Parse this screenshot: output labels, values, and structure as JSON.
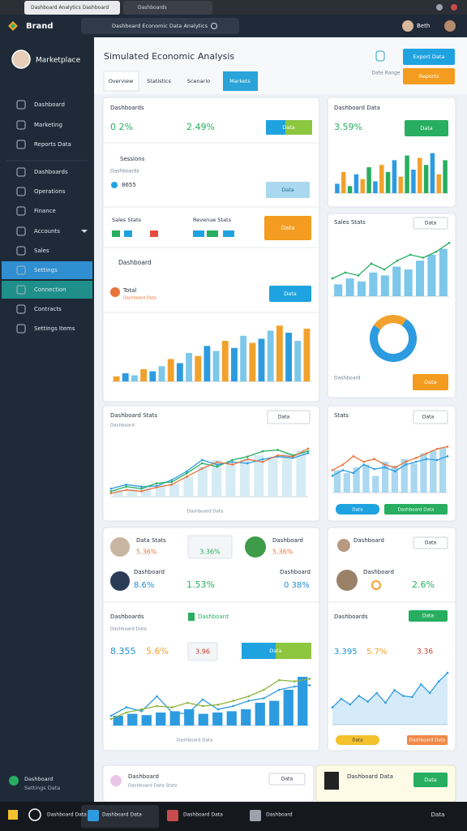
{
  "browser": {
    "tabs": [
      "Dashboard Analytics Dashboard",
      "Dashboards"
    ]
  },
  "header": {
    "brand": "Brand",
    "search": "Dashboard Economic Data Analytics",
    "user": "Beth"
  },
  "sidebar": {
    "profile": "Marketplace",
    "items": [
      "Dashboard",
      "Marketing",
      "Reports Data",
      "Dashboards",
      "Operations",
      "Finance",
      "Accounts",
      "Sales",
      "Settings",
      "Connection",
      "Contracts",
      "Settings Items"
    ],
    "footer": [
      "Dashboard",
      "Settings Data"
    ]
  },
  "page": {
    "title": "Simulated Economic Analysis",
    "tabs": [
      "Overview",
      "Statistics",
      "Scenario",
      "Markets"
    ],
    "actions": [
      "Export Data",
      "Reports"
    ],
    "range": "Date Range"
  },
  "overview": {
    "title": "Dashboards",
    "change": "0 2%",
    "growth": "2.49%",
    "button": "Data"
  },
  "sessions": {
    "title": "Sessions",
    "subtitle": "Dashboards",
    "value": "8655",
    "button": "Data"
  },
  "stats": {
    "left": "Sales Stats",
    "right": "Revenue Stats",
    "button": "Data"
  },
  "dashboard": {
    "title": "Dashboard",
    "value": "Total",
    "subtitle": "Dashboard Data",
    "button": "Data"
  },
  "top_right": {
    "title": "Dashboard Data",
    "value": "3.59%",
    "button": "Data"
  },
  "sales": {
    "title": "Sales Stats",
    "button": "Data",
    "footer": "Dashboard",
    "footer_button": "Data"
  },
  "trend": {
    "title": "Dashboard Stats",
    "subtitle": "Dashboard",
    "button": "Data",
    "legend": "Dashboard Data"
  },
  "trend_right": {
    "title": "Stats",
    "button": "Data",
    "footer": [
      "Data",
      "Dashboard Data"
    ]
  },
  "people": [
    {
      "name": "Data Stats",
      "value": "5.36%",
      "box": "3.36%"
    },
    {
      "name": "Dashboard",
      "value": "5.36%"
    },
    {
      "name": "Dashboard",
      "value": "8.6%",
      "extra": "1.53%"
    },
    {
      "name": "Dashboard",
      "value": "0 38%"
    }
  ],
  "summary": {
    "title": "Dashboards",
    "tag": "Dashboard",
    "subtitle": "Dashboard Data",
    "value": "8.355",
    "change": "5.6%",
    "box": "3.96",
    "button": "Data",
    "legend": "Dashboard Data"
  },
  "people_right": [
    {
      "name": "Dashboard",
      "button": "Data"
    },
    {
      "name": "Dashboard",
      "value": "2.6%"
    }
  ],
  "summary_right": {
    "title": "Dashboards",
    "button": "Data",
    "value": "3.395",
    "change": "5.7%",
    "extra": "3.36",
    "footer": [
      "Data",
      "Dashboard Data"
    ]
  },
  "bottom": {
    "title": "Dashboard",
    "subtitle": "Dashboard Data Stats",
    "button": "Data",
    "right_title": "Dashboard Data",
    "right_button": "Data"
  },
  "taskbar": {
    "items": [
      "Dashboard Data",
      "Dashboard Data",
      "Dashboard Data",
      "Dashboard"
    ],
    "time": "Data"
  },
  "charts": {
    "top_bars": {
      "type": "bar",
      "values": [
        20,
        45,
        15,
        40,
        30,
        55,
        25,
        60,
        45,
        70,
        35,
        80,
        50,
        75,
        60,
        85,
        40,
        70
      ],
      "colors": [
        "#2d9be0",
        "#f2a12c",
        "#27ae60"
      ],
      "ylim": [
        0,
        100
      ]
    },
    "overview_bars": {
      "type": "bar",
      "values": [
        5,
        8,
        6,
        12,
        10,
        15,
        22,
        18,
        28,
        25,
        35,
        30,
        40,
        33,
        45,
        38,
        42,
        50,
        55,
        48,
        40,
        52
      ],
      "colors": [
        "#f2a12c",
        "#2d9be0",
        "#7cc7ea"
      ],
      "ylim": [
        0,
        60
      ]
    },
    "sales_combo": {
      "type": "combo",
      "bars": [
        20,
        30,
        25,
        40,
        35,
        50,
        45,
        60,
        70,
        80
      ],
      "series": [
        {
          "color": "#27ae60",
          "values": [
            30,
            40,
            35,
            55,
            45,
            60,
            70,
            65,
            75,
            90
          ]
        }
      ],
      "barcolor": "#7cc7ea",
      "ylim": [
        0,
        100
      ]
    },
    "donut": {
      "type": "pie",
      "values": [
        75,
        25
      ],
      "colors": [
        "#2d9be0",
        "#f2a12c"
      ]
    },
    "trend": {
      "type": "combo",
      "bars": [
        10,
        12,
        15,
        18,
        20,
        30,
        45,
        55,
        50,
        58,
        62,
        60,
        65,
        70
      ],
      "series": [
        {
          "color": "#2d9be0",
          "values": [
            12,
            18,
            15,
            16,
            25,
            38,
            55,
            48,
            52,
            50,
            56,
            60,
            58,
            65
          ]
        },
        {
          "color": "#27ae60",
          "values": [
            8,
            15,
            12,
            20,
            22,
            35,
            50,
            45,
            55,
            60,
            68,
            70,
            62,
            68
          ]
        },
        {
          "color": "#e8743b",
          "values": [
            5,
            10,
            8,
            14,
            18,
            30,
            42,
            52,
            48,
            56,
            52,
            62,
            60,
            72
          ]
        }
      ],
      "barcolor": "#d6ecf5",
      "ylim": [
        0,
        90
      ]
    },
    "trend_right": {
      "type": "combo",
      "bars": [
        40,
        35,
        45,
        50,
        30,
        55,
        48,
        60,
        52,
        70,
        75,
        80
      ],
      "series": [
        {
          "color": "#2d9be0",
          "values": [
            30,
            40,
            35,
            50,
            42,
            45,
            38,
            50,
            55,
            60,
            58,
            65
          ]
        },
        {
          "color": "#e8743b",
          "values": [
            40,
            50,
            65,
            55,
            60,
            50,
            45,
            55,
            62,
            70,
            78,
            82
          ]
        }
      ],
      "barcolor": "#a9d8f0",
      "ylim": [
        0,
        100
      ]
    },
    "bottom_left": {
      "type": "combo",
      "bars": [
        15,
        18,
        16,
        20,
        22,
        25,
        18,
        20,
        22,
        25,
        35,
        38,
        55,
        75
      ],
      "series": [
        {
          "color": "#2d9be0",
          "values": [
            15,
            28,
            22,
            45,
            20,
            18,
            40,
            25,
            30,
            38,
            42,
            55,
            60,
            62
          ]
        },
        {
          "color": "#8db33b",
          "values": [
            10,
            20,
            25,
            30,
            28,
            35,
            30,
            32,
            38,
            45,
            55,
            70,
            68,
            72
          ]
        }
      ],
      "barcolor": "#2d9be0",
      "ylim": [
        0,
        90
      ]
    },
    "bottom_right": {
      "type": "combo",
      "bars": [],
      "series": [
        {
          "color": "#2d9be0",
          "values": [
            30,
            45,
            35,
            50,
            40,
            55,
            38,
            60,
            50,
            48,
            70,
            55,
            75,
            90
          ]
        }
      ],
      "area": true,
      "ylim": [
        0,
        100
      ]
    }
  }
}
